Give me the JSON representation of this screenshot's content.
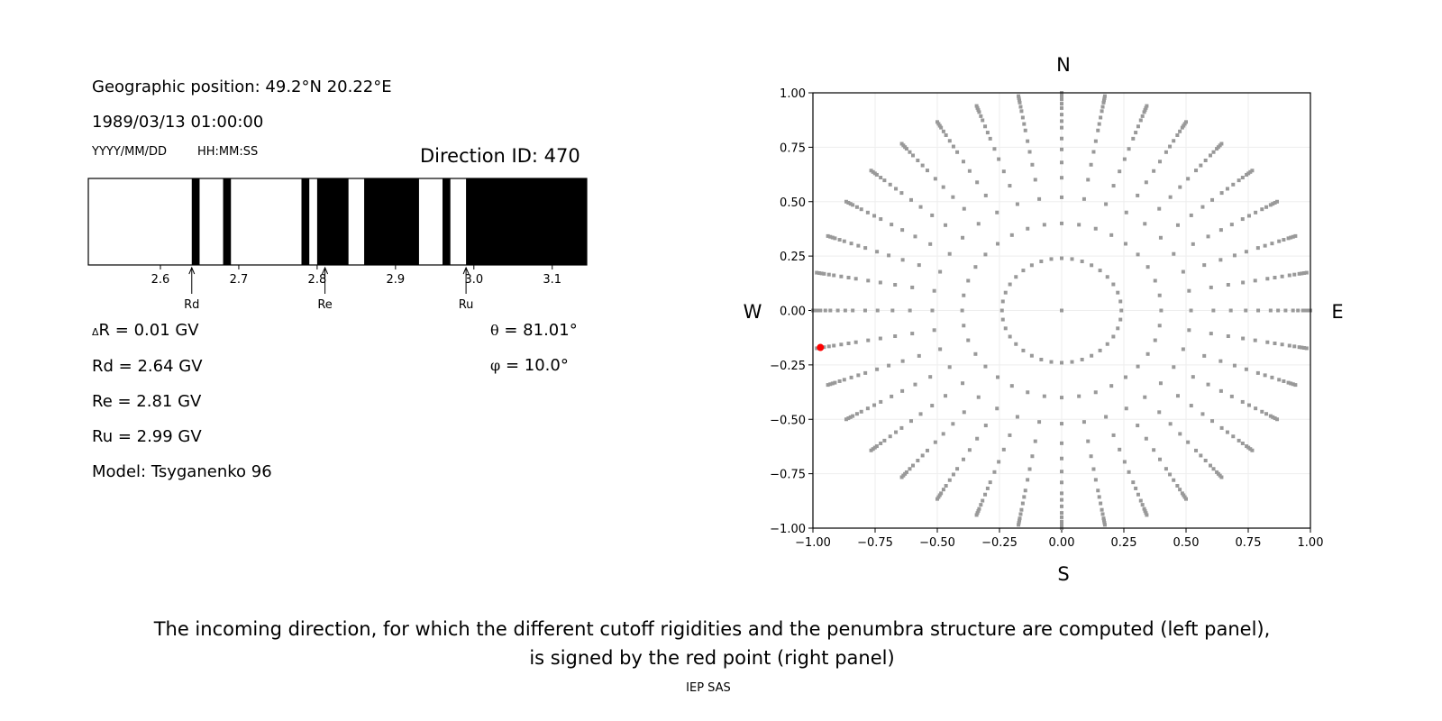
{
  "left_panel": {
    "geo": "Geographic position: 49.2°N 20.22°E",
    "datetime": "1989/03/13 01:00:00",
    "date_fmt": "YYYY/MM/DD",
    "time_fmt": "HH:MM:SS",
    "direction": "Direction ID: 470",
    "dR_sym": "Δ",
    "dR": "R = 0.01 GV",
    "rd": "Rd = 2.64 GV",
    "re": "Re = 2.81 GV",
    "ru": "Ru = 2.99 GV",
    "model": "Model: Tsyganenko 96",
    "theta_sym": "θ",
    "theta": "= 81.01°",
    "phi_sym": "φ",
    "phi": "= 10.0°"
  },
  "chart_data": [
    {
      "type": "bar",
      "subtype": "penumbra",
      "xlim": [
        2.508,
        3.144
      ],
      "xticks": [
        "2.6",
        "2.7",
        "2.8",
        "2.9",
        "3.0",
        "3.1"
      ],
      "forbidden_bands": [
        [
          2.64,
          2.65
        ],
        [
          2.68,
          2.69
        ],
        [
          2.78,
          2.79
        ],
        [
          2.8,
          2.84
        ],
        [
          2.86,
          2.93
        ],
        [
          2.96,
          2.97
        ],
        [
          2.99,
          3.144
        ]
      ],
      "colors": {
        "forbidden": "#000000",
        "allowed": "#ffffff"
      },
      "markers": [
        {
          "label": "Rd",
          "x": 2.64
        },
        {
          "label": "Re",
          "x": 2.81
        },
        {
          "label": "Ru",
          "x": 2.99
        }
      ]
    },
    {
      "type": "scatter",
      "xlim": [
        -1,
        1
      ],
      "ylim": [
        -1,
        1
      ],
      "grid": true,
      "ticks": [
        "−1.00",
        "−0.75",
        "−0.50",
        "−0.25",
        "0.00",
        "0.25",
        "0.50",
        "0.75",
        "1.00"
      ],
      "compass": {
        "n": "N",
        "s": "S",
        "e": "E",
        "w": "W"
      },
      "azimuth_step_deg": 10,
      "radii": [
        0.24,
        0.4,
        0.52,
        0.61,
        0.68,
        0.74,
        0.79,
        0.84,
        0.87,
        0.9,
        0.93,
        0.95,
        0.97,
        0.98,
        0.99,
        1.0
      ],
      "center_point": [
        0,
        0
      ],
      "point_color": "#999999",
      "selected": {
        "x": -0.97,
        "y": -0.17,
        "color": "#ff0000"
      }
    }
  ],
  "caption": {
    "line1": "The incoming direction, for which the different cutoff rigidities and the penumbra structure are computed (left panel),",
    "line2": "is signed by the red point (right panel)"
  },
  "footer": "IEP SAS"
}
